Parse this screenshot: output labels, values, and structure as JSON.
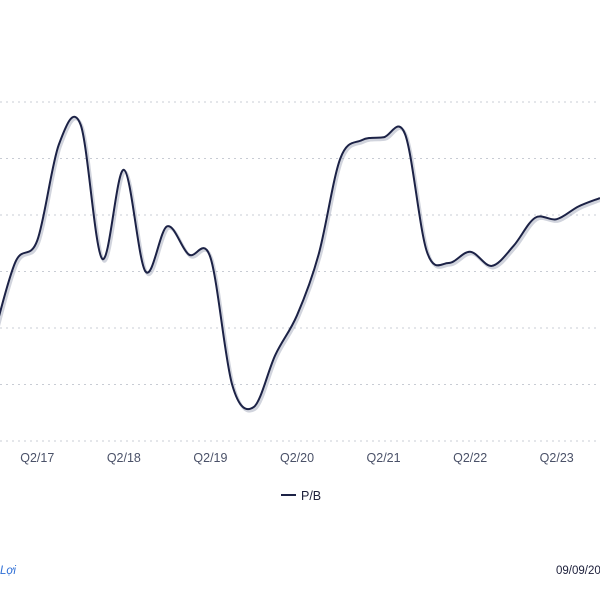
{
  "chart_data": {
    "type": "line",
    "x_tick_labels": [
      "Q2/17",
      "Q2/18",
      "Q2/19",
      "Q2/20",
      "Q2/21",
      "Q2/22",
      "Q2/23"
    ],
    "grid": true,
    "legend_placement": "bottom-center",
    "series": [
      {
        "name": "P/B",
        "color": "#1c2246",
        "x": [
          "Q4/16",
          "Q1/17",
          "Q2/17",
          "Q3/17",
          "Q4/17",
          "Q1/18",
          "Q2/18",
          "Q3/18",
          "Q4/18",
          "Q1/19",
          "Q2/19",
          "Q3/19",
          "Q4/19",
          "Q1/20",
          "Q2/20",
          "Q3/20",
          "Q4/20",
          "Q1/21",
          "Q2/21",
          "Q3/21",
          "Q4/21",
          "Q1/22",
          "Q2/22",
          "Q3/22",
          "Q4/22",
          "Q1/23",
          "Q2/23",
          "Q3/23",
          "Q4/23"
        ],
        "values": [
          23.5,
          28.7,
          30.2,
          37.0,
          38.4,
          28.9,
          35.2,
          28.0,
          31.2,
          29.2,
          29.0,
          20.0,
          18.4,
          22.1,
          24.9,
          29.2,
          36.0,
          37.3,
          37.5,
          37.7,
          29.4,
          28.6,
          29.4,
          28.4,
          29.8,
          31.8,
          31.7,
          32.6,
          33.2
        ]
      }
    ]
  },
  "footer": {
    "source_text": "Lợi",
    "date_text": "09/09/20"
  }
}
